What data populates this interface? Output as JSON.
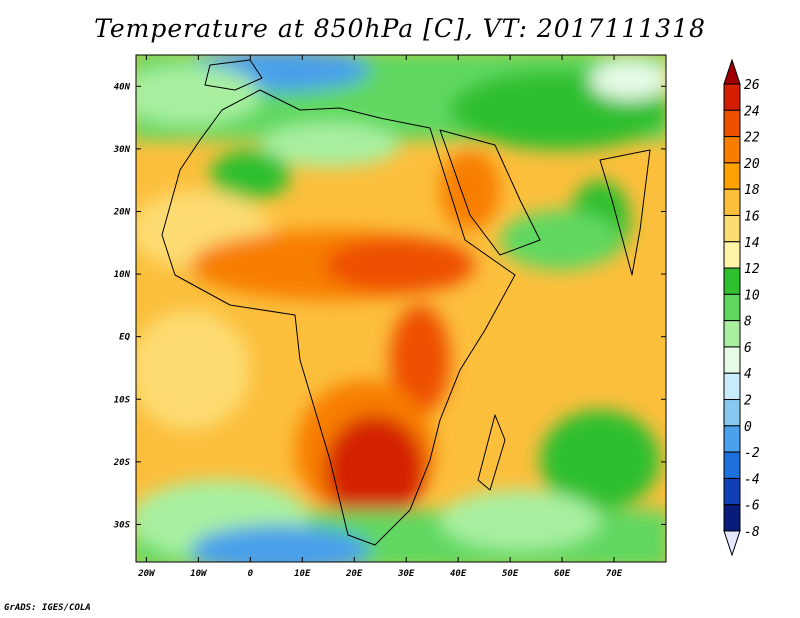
{
  "title": "Temperature at 850hPa [C], VT: 2017111318",
  "credit": "GrADS: IGES/COLA",
  "map": {
    "lon_range": [
      -22,
      80
    ],
    "lat_range": [
      -36,
      45
    ],
    "x_ticks": [
      "20W",
      "10W",
      "0",
      "10E",
      "20E",
      "30E",
      "40E",
      "50E",
      "60E",
      "70E"
    ],
    "y_ticks": [
      "40N",
      "30N",
      "20N",
      "10N",
      "EQ",
      "10S",
      "20S",
      "30S"
    ]
  },
  "colorbar": {
    "labels": [
      "26",
      "24",
      "22",
      "20",
      "18",
      "16",
      "14",
      "12",
      "10",
      "8",
      "6",
      "4",
      "2",
      "0",
      "-2",
      "-4",
      "-6",
      "-8"
    ],
    "colors": [
      "#a00000",
      "#d42000",
      "#ee5000",
      "#f87e00",
      "#fba200",
      "#fcbf3c",
      "#fddc72",
      "#fef5a8",
      "#2fbf2f",
      "#60d860",
      "#a8f0a0",
      "#e6fbe6",
      "#c8ecfa",
      "#88c8f0",
      "#4aa0ea",
      "#1e70dc",
      "#1040b4",
      "#081a7a",
      "#e6e6ff"
    ]
  }
}
